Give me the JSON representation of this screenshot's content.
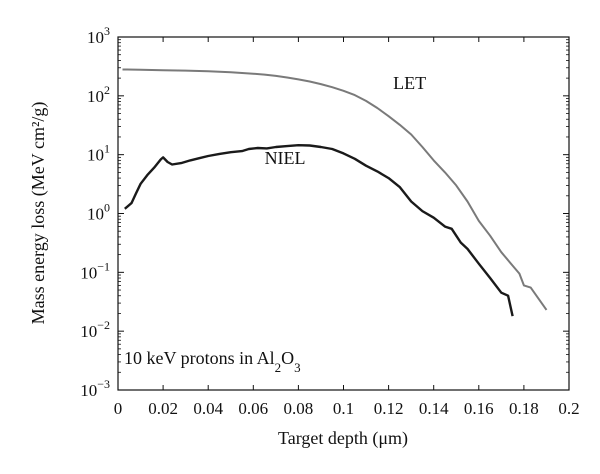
{
  "chart_data": {
    "type": "line",
    "xlabel": "Target depth (μm)",
    "ylabel": "Mass energy loss (MeV cm²/g)",
    "xlim": [
      0,
      0.2
    ],
    "ylim": [
      0.001,
      1000
    ],
    "yscale": "log",
    "grid": false,
    "x_ticks": [
      "0",
      "0.02",
      "0.04",
      "0.06",
      "0.08",
      "0.1",
      "0.12",
      "0.14",
      "0.16",
      "0.18",
      "0.2"
    ],
    "y_ticks": [
      {
        "base": "10",
        "exp": "−3",
        "value": 0.001
      },
      {
        "base": "10",
        "exp": "−2",
        "value": 0.01
      },
      {
        "base": "10",
        "exp": "−1",
        "value": 0.1
      },
      {
        "base": "10",
        "exp": "0",
        "value": 1
      },
      {
        "base": "10",
        "exp": "1",
        "value": 10
      },
      {
        "base": "10",
        "exp": "2",
        "value": 100
      },
      {
        "base": "10",
        "exp": "3",
        "value": 1000
      }
    ],
    "annotation": {
      "prefix": "10 keV protons in Al",
      "sub1": "2",
      "mid": "O",
      "sub2": "3"
    },
    "series": [
      {
        "name": "LET",
        "color": "#7a7a7a",
        "points": [
          [
            0.002,
            280
          ],
          [
            0.01,
            278
          ],
          [
            0.02,
            272
          ],
          [
            0.03,
            268
          ],
          [
            0.04,
            262
          ],
          [
            0.05,
            252
          ],
          [
            0.06,
            238
          ],
          [
            0.065,
            230
          ],
          [
            0.07,
            218
          ],
          [
            0.075,
            205
          ],
          [
            0.08,
            190
          ],
          [
            0.085,
            175
          ],
          [
            0.09,
            158
          ],
          [
            0.095,
            140
          ],
          [
            0.1,
            122
          ],
          [
            0.105,
            103
          ],
          [
            0.11,
            82
          ],
          [
            0.115,
            62
          ],
          [
            0.12,
            45
          ],
          [
            0.125,
            32
          ],
          [
            0.13,
            22
          ],
          [
            0.135,
            13.5
          ],
          [
            0.14,
            8
          ],
          [
            0.145,
            5
          ],
          [
            0.15,
            3
          ],
          [
            0.155,
            1.6
          ],
          [
            0.16,
            0.75
          ],
          [
            0.165,
            0.42
          ],
          [
            0.17,
            0.22
          ],
          [
            0.175,
            0.13
          ],
          [
            0.178,
            0.095
          ],
          [
            0.18,
            0.06
          ],
          [
            0.183,
            0.055
          ],
          [
            0.186,
            0.038
          ],
          [
            0.19,
            0.023
          ]
        ]
      },
      {
        "name": "NIEL",
        "color": "#1a1a1a",
        "points": [
          [
            0.003,
            1.2
          ],
          [
            0.006,
            1.5
          ],
          [
            0.008,
            2.2
          ],
          [
            0.01,
            3.2
          ],
          [
            0.013,
            4.5
          ],
          [
            0.016,
            6
          ],
          [
            0.019,
            8.3
          ],
          [
            0.02,
            9
          ],
          [
            0.022,
            7.5
          ],
          [
            0.024,
            6.8
          ],
          [
            0.028,
            7.2
          ],
          [
            0.032,
            8
          ],
          [
            0.036,
            8.7
          ],
          [
            0.04,
            9.5
          ],
          [
            0.045,
            10.3
          ],
          [
            0.05,
            11
          ],
          [
            0.055,
            11.5
          ],
          [
            0.058,
            12.5
          ],
          [
            0.062,
            13
          ],
          [
            0.066,
            12.8
          ],
          [
            0.07,
            13.5
          ],
          [
            0.075,
            14
          ],
          [
            0.08,
            14.5
          ],
          [
            0.085,
            14.3
          ],
          [
            0.09,
            13.5
          ],
          [
            0.095,
            12.5
          ],
          [
            0.1,
            10.5
          ],
          [
            0.105,
            8.5
          ],
          [
            0.11,
            6.5
          ],
          [
            0.115,
            5.2
          ],
          [
            0.12,
            4
          ],
          [
            0.125,
            2.8
          ],
          [
            0.13,
            1.6
          ],
          [
            0.135,
            1.1
          ],
          [
            0.14,
            0.85
          ],
          [
            0.145,
            0.6
          ],
          [
            0.148,
            0.55
          ],
          [
            0.152,
            0.32
          ],
          [
            0.155,
            0.25
          ],
          [
            0.16,
            0.14
          ],
          [
            0.165,
            0.08
          ],
          [
            0.17,
            0.045
          ],
          [
            0.173,
            0.04
          ],
          [
            0.175,
            0.018
          ]
        ]
      }
    ],
    "series_labels": [
      {
        "text": "LET",
        "at": [
          0.122,
          130
        ]
      },
      {
        "text": "NIEL",
        "at": [
          0.065,
          7
        ]
      }
    ]
  }
}
